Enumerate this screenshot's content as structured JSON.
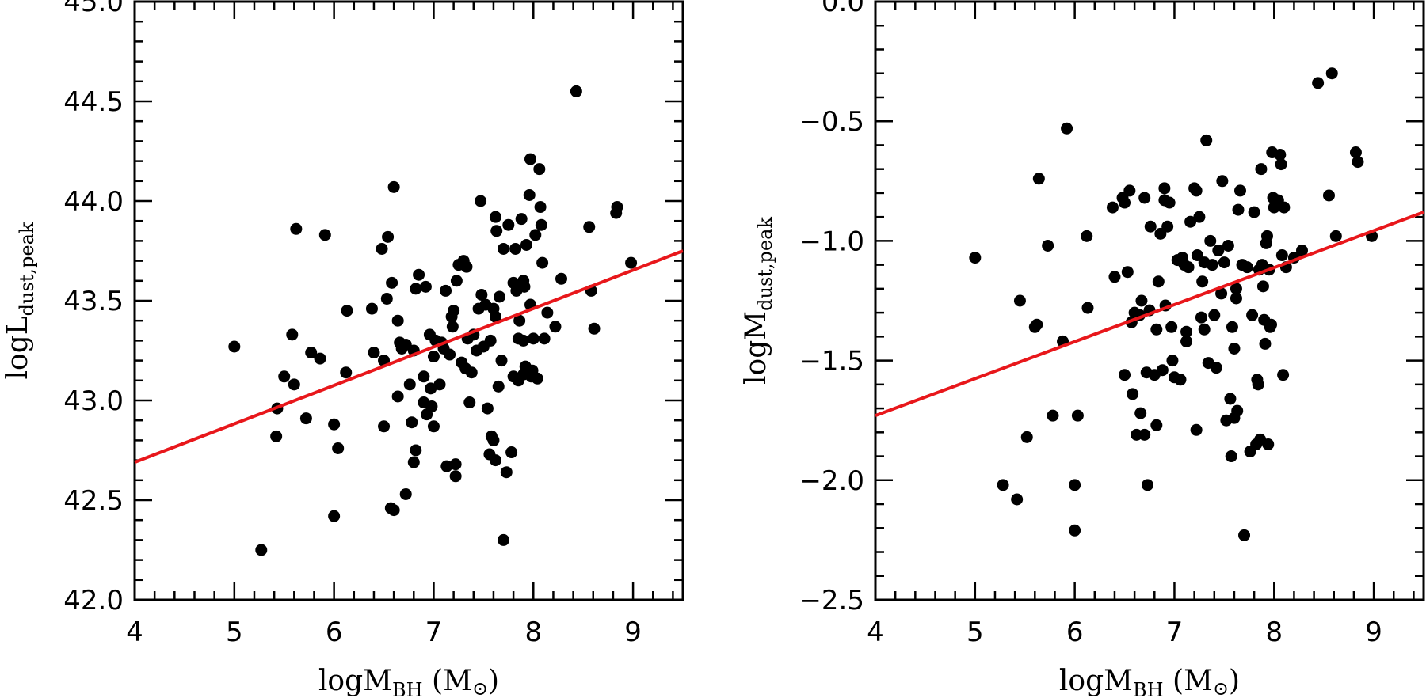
{
  "chart_data": [
    {
      "type": "scatter",
      "id": "left",
      "xlabel": {
        "main": "logM",
        "sub": "BH",
        "unit": " (M",
        "unit_close": ")"
      },
      "ylabel": {
        "main": "logL",
        "sub": "dust,peak"
      },
      "xlim": [
        4,
        9.5
      ],
      "ylim": [
        42.0,
        45.0
      ],
      "xticks": [
        4,
        5,
        6,
        7,
        8,
        9
      ],
      "xtick_labels": [
        "4",
        "5",
        "6",
        "7",
        "8",
        "9"
      ],
      "yticks": [
        42.0,
        42.5,
        43.0,
        43.5,
        44.0,
        44.5,
        45.0
      ],
      "ytick_labels": [
        "42.0",
        "42.5",
        "43.0",
        "43.5",
        "44.0",
        "44.5",
        "45.0"
      ],
      "line_color": "#e8171b",
      "fit_line": {
        "x": [
          4,
          9.5
        ],
        "y": [
          42.69,
          43.75
        ]
      },
      "points": [
        [
          5.0,
          43.27
        ],
        [
          5.27,
          42.25
        ],
        [
          5.42,
          42.82
        ],
        [
          5.43,
          42.96
        ],
        [
          5.5,
          43.12
        ],
        [
          5.58,
          43.33
        ],
        [
          5.62,
          43.86
        ],
        [
          5.6,
          43.08
        ],
        [
          5.72,
          42.91
        ],
        [
          5.77,
          43.24
        ],
        [
          5.86,
          43.21
        ],
        [
          5.91,
          43.83
        ],
        [
          6.0,
          42.88
        ],
        [
          6.0,
          42.42
        ],
        [
          6.04,
          42.76
        ],
        [
          6.12,
          43.14
        ],
        [
          6.13,
          43.45
        ],
        [
          6.38,
          43.46
        ],
        [
          6.4,
          43.24
        ],
        [
          6.48,
          43.76
        ],
        [
          6.5,
          42.87
        ],
        [
          6.5,
          43.2
        ],
        [
          6.53,
          43.51
        ],
        [
          6.54,
          43.82
        ],
        [
          6.57,
          42.46
        ],
        [
          6.58,
          43.59
        ],
        [
          6.6,
          44.07
        ],
        [
          6.6,
          42.45
        ],
        [
          6.64,
          43.4
        ],
        [
          6.64,
          43.02
        ],
        [
          6.66,
          43.29
        ],
        [
          6.68,
          43.26
        ],
        [
          6.72,
          42.53
        ],
        [
          6.72,
          43.28
        ],
        [
          6.76,
          43.08
        ],
        [
          6.78,
          42.89
        ],
        [
          6.8,
          42.69
        ],
        [
          6.8,
          43.25
        ],
        [
          6.82,
          42.75
        ],
        [
          6.82,
          43.56
        ],
        [
          6.85,
          43.63
        ],
        [
          6.9,
          43.12
        ],
        [
          6.9,
          42.99
        ],
        [
          6.92,
          43.57
        ],
        [
          6.93,
          42.93
        ],
        [
          6.96,
          43.33
        ],
        [
          6.97,
          43.06
        ],
        [
          6.98,
          42.97
        ],
        [
          7.0,
          43.22
        ],
        [
          7.0,
          42.87
        ],
        [
          7.02,
          43.3
        ],
        [
          7.06,
          43.08
        ],
        [
          7.08,
          43.29
        ],
        [
          7.1,
          43.26
        ],
        [
          7.12,
          43.55
        ],
        [
          7.13,
          42.67
        ],
        [
          7.16,
          43.23
        ],
        [
          7.18,
          43.42
        ],
        [
          7.19,
          43.37
        ],
        [
          7.2,
          43.45
        ],
        [
          7.22,
          42.62
        ],
        [
          7.22,
          42.68
        ],
        [
          7.23,
          43.6
        ],
        [
          7.25,
          43.68
        ],
        [
          7.28,
          43.19
        ],
        [
          7.3,
          43.7
        ],
        [
          7.32,
          43.16
        ],
        [
          7.33,
          43.67
        ],
        [
          7.34,
          43.31
        ],
        [
          7.36,
          42.99
        ],
        [
          7.38,
          43.14
        ],
        [
          7.4,
          43.33
        ],
        [
          7.43,
          43.25
        ],
        [
          7.45,
          43.46
        ],
        [
          7.47,
          44.0
        ],
        [
          7.48,
          43.53
        ],
        [
          7.5,
          43.27
        ],
        [
          7.52,
          43.48
        ],
        [
          7.54,
          42.96
        ],
        [
          7.56,
          42.73
        ],
        [
          7.57,
          43.3
        ],
        [
          7.58,
          42.82
        ],
        [
          7.6,
          42.8
        ],
        [
          7.6,
          43.46
        ],
        [
          7.62,
          43.42
        ],
        [
          7.62,
          43.92
        ],
        [
          7.62,
          42.7
        ],
        [
          7.63,
          43.85
        ],
        [
          7.65,
          43.07
        ],
        [
          7.66,
          43.52
        ],
        [
          7.68,
          43.2
        ],
        [
          7.7,
          43.76
        ],
        [
          7.7,
          42.3
        ],
        [
          7.73,
          42.64
        ],
        [
          7.75,
          43.88
        ],
        [
          7.78,
          42.74
        ],
        [
          7.8,
          43.59
        ],
        [
          7.8,
          43.12
        ],
        [
          7.82,
          43.76
        ],
        [
          7.83,
          43.55
        ],
        [
          7.85,
          43.1
        ],
        [
          7.85,
          43.31
        ],
        [
          7.86,
          43.4
        ],
        [
          7.88,
          43.91
        ],
        [
          7.9,
          43.6
        ],
        [
          7.9,
          43.13
        ],
        [
          7.9,
          43.3
        ],
        [
          7.91,
          43.57
        ],
        [
          7.92,
          43.17
        ],
        [
          7.93,
          43.78
        ],
        [
          7.96,
          44.03
        ],
        [
          7.97,
          44.21
        ],
        [
          7.97,
          43.48
        ],
        [
          7.98,
          43.12
        ],
        [
          7.99,
          43.15
        ],
        [
          8.0,
          43.31
        ],
        [
          8.02,
          43.83
        ],
        [
          8.04,
          43.11
        ],
        [
          8.06,
          44.16
        ],
        [
          8.07,
          43.97
        ],
        [
          8.08,
          43.88
        ],
        [
          8.09,
          43.69
        ],
        [
          8.11,
          43.31
        ],
        [
          8.14,
          43.44
        ],
        [
          8.22,
          43.37
        ],
        [
          8.28,
          43.61
        ],
        [
          8.43,
          44.55
        ],
        [
          8.56,
          43.87
        ],
        [
          8.58,
          43.55
        ],
        [
          8.61,
          43.36
        ],
        [
          8.83,
          43.94
        ],
        [
          8.84,
          43.97
        ],
        [
          8.98,
          43.69
        ]
      ]
    },
    {
      "type": "scatter",
      "id": "right",
      "xlabel": {
        "main": "logM",
        "sub": "BH",
        "unit": " (M",
        "unit_close": ")"
      },
      "ylabel": {
        "main": "logM",
        "sub": "dust,peak"
      },
      "xlim": [
        4,
        9.5
      ],
      "ylim": [
        -2.5,
        0.0
      ],
      "xticks": [
        4,
        5,
        6,
        7,
        8,
        9
      ],
      "xtick_labels": [
        "4",
        "5",
        "6",
        "7",
        "8",
        "9"
      ],
      "yticks": [
        -2.5,
        -2.0,
        -1.5,
        -1.0,
        -0.5,
        0.0
      ],
      "ytick_labels": [
        "−2.5",
        "−2.0",
        "−1.5",
        "−1.0",
        "−0.5",
        "0.0"
      ],
      "line_color": "#e8171b",
      "fit_line": {
        "x": [
          4,
          9.5
        ],
        "y": [
          -1.73,
          -0.88
        ]
      },
      "points": [
        [
          5.0,
          -1.07
        ],
        [
          5.28,
          -2.02
        ],
        [
          5.42,
          -2.08
        ],
        [
          5.45,
          -1.25
        ],
        [
          5.52,
          -1.82
        ],
        [
          5.6,
          -1.36
        ],
        [
          5.62,
          -1.35
        ],
        [
          5.64,
          -0.74
        ],
        [
          5.73,
          -1.02
        ],
        [
          5.78,
          -1.73
        ],
        [
          5.88,
          -1.42
        ],
        [
          5.92,
          -0.53
        ],
        [
          6.0,
          -2.02
        ],
        [
          6.0,
          -2.21
        ],
        [
          6.03,
          -1.73
        ],
        [
          6.12,
          -0.98
        ],
        [
          6.13,
          -1.28
        ],
        [
          6.38,
          -0.86
        ],
        [
          6.4,
          -1.15
        ],
        [
          6.48,
          -0.82
        ],
        [
          6.5,
          -1.56
        ],
        [
          6.5,
          -0.84
        ],
        [
          6.53,
          -1.13
        ],
        [
          6.55,
          -0.79
        ],
        [
          6.57,
          -1.34
        ],
        [
          6.58,
          -1.64
        ],
        [
          6.6,
          -1.3
        ],
        [
          6.62,
          -1.81
        ],
        [
          6.65,
          -1.31
        ],
        [
          6.66,
          -1.72
        ],
        [
          6.67,
          -1.25
        ],
        [
          6.7,
          -0.82
        ],
        [
          6.7,
          -1.81
        ],
        [
          6.72,
          -1.55
        ],
        [
          6.73,
          -2.02
        ],
        [
          6.75,
          -1.29
        ],
        [
          6.76,
          -0.94
        ],
        [
          6.8,
          -1.56
        ],
        [
          6.82,
          -1.37
        ],
        [
          6.82,
          -1.77
        ],
        [
          6.84,
          -1.17
        ],
        [
          6.86,
          -0.97
        ],
        [
          6.88,
          -1.54
        ],
        [
          6.9,
          -0.78
        ],
        [
          6.9,
          -0.83
        ],
        [
          6.91,
          -1.27
        ],
        [
          6.93,
          -0.94
        ],
        [
          6.95,
          -0.84
        ],
        [
          6.97,
          -1.36
        ],
        [
          6.98,
          -1.5
        ],
        [
          7.0,
          -1.57
        ],
        [
          7.03,
          -1.08
        ],
        [
          7.06,
          -1.58
        ],
        [
          7.08,
          -1.07
        ],
        [
          7.1,
          -1.1
        ],
        [
          7.12,
          -1.38
        ],
        [
          7.12,
          -1.42
        ],
        [
          7.14,
          -1.11
        ],
        [
          7.16,
          -0.92
        ],
        [
          7.2,
          -0.78
        ],
        [
          7.22,
          -0.79
        ],
        [
          7.22,
          -1.79
        ],
        [
          7.23,
          -1.06
        ],
        [
          7.25,
          -0.9
        ],
        [
          7.27,
          -1.32
        ],
        [
          7.28,
          -1.17
        ],
        [
          7.3,
          -1.37
        ],
        [
          7.3,
          -1.09
        ],
        [
          7.32,
          -0.58
        ],
        [
          7.34,
          -1.51
        ],
        [
          7.36,
          -1.0
        ],
        [
          7.38,
          -1.1
        ],
        [
          7.4,
          -1.31
        ],
        [
          7.42,
          -1.53
        ],
        [
          7.44,
          -1.04
        ],
        [
          7.47,
          -1.22
        ],
        [
          7.48,
          -0.75
        ],
        [
          7.5,
          -1.09
        ],
        [
          7.52,
          -1.75
        ],
        [
          7.54,
          -1.02
        ],
        [
          7.56,
          -1.66
        ],
        [
          7.57,
          -1.9
        ],
        [
          7.58,
          -1.36
        ],
        [
          7.6,
          -1.45
        ],
        [
          7.6,
          -1.74
        ],
        [
          7.62,
          -1.2
        ],
        [
          7.62,
          -1.24
        ],
        [
          7.63,
          -1.71
        ],
        [
          7.64,
          -0.87
        ],
        [
          7.66,
          -0.79
        ],
        [
          7.68,
          -1.1
        ],
        [
          7.7,
          -2.23
        ],
        [
          7.73,
          -1.11
        ],
        [
          7.76,
          -1.88
        ],
        [
          7.78,
          -1.31
        ],
        [
          7.8,
          -0.88
        ],
        [
          7.82,
          -1.85
        ],
        [
          7.83,
          -1.58
        ],
        [
          7.84,
          -1.6
        ],
        [
          7.85,
          -1.12
        ],
        [
          7.86,
          -1.83
        ],
        [
          7.87,
          -0.7
        ],
        [
          7.88,
          -1.1
        ],
        [
          7.89,
          -1.19
        ],
        [
          7.9,
          -1.33
        ],
        [
          7.91,
          -1.43
        ],
        [
          7.92,
          -1.01
        ],
        [
          7.93,
          -0.98
        ],
        [
          7.94,
          -1.85
        ],
        [
          7.95,
          -1.12
        ],
        [
          7.96,
          -1.36
        ],
        [
          7.97,
          -1.35
        ],
        [
          7.98,
          -0.63
        ],
        [
          7.99,
          -0.82
        ],
        [
          8.0,
          -0.86
        ],
        [
          8.02,
          -0.85
        ],
        [
          8.04,
          -0.83
        ],
        [
          8.06,
          -0.64
        ],
        [
          8.07,
          -0.68
        ],
        [
          8.08,
          -1.06
        ],
        [
          8.09,
          -1.56
        ],
        [
          8.1,
          -0.86
        ],
        [
          8.12,
          -1.11
        ],
        [
          8.2,
          -1.07
        ],
        [
          8.28,
          -1.04
        ],
        [
          8.44,
          -0.34
        ],
        [
          8.55,
          -0.81
        ],
        [
          8.58,
          -0.3
        ],
        [
          8.62,
          -0.98
        ],
        [
          8.82,
          -0.63
        ],
        [
          8.84,
          -0.67
        ],
        [
          8.98,
          -0.98
        ]
      ]
    }
  ]
}
